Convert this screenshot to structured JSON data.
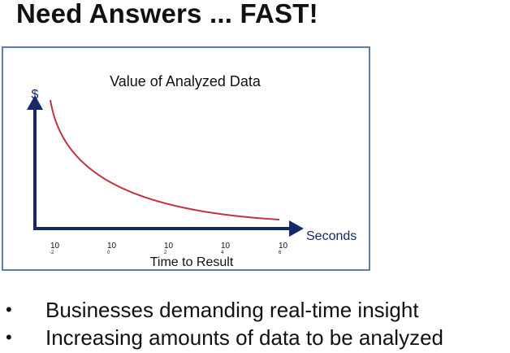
{
  "title": "Need Answers ... FAST!",
  "chart_data": {
    "type": "line",
    "title": "Value of Analyzed Data",
    "y_axis_symbol": "$",
    "x_axis_unit_label": "Seconds",
    "xlabel": "Time to Result",
    "tick_labels": [
      {
        "base": "10",
        "exponent": "-2"
      },
      {
        "base": "10",
        "exponent": "0"
      },
      {
        "base": "10",
        "exponent": "2"
      },
      {
        "base": "10",
        "exponent": "4"
      },
      {
        "base": "10",
        "exponent": "6"
      }
    ],
    "series": [
      {
        "color": "#c0323f",
        "shape": "exponential-decay"
      }
    ],
    "axis_color": "#14286b"
  },
  "bullets": [
    {
      "symbol": "•",
      "text": "Businesses demanding real-time insight"
    },
    {
      "symbol": "•",
      "text": "Increasing amounts of data to be analyzed"
    }
  ]
}
